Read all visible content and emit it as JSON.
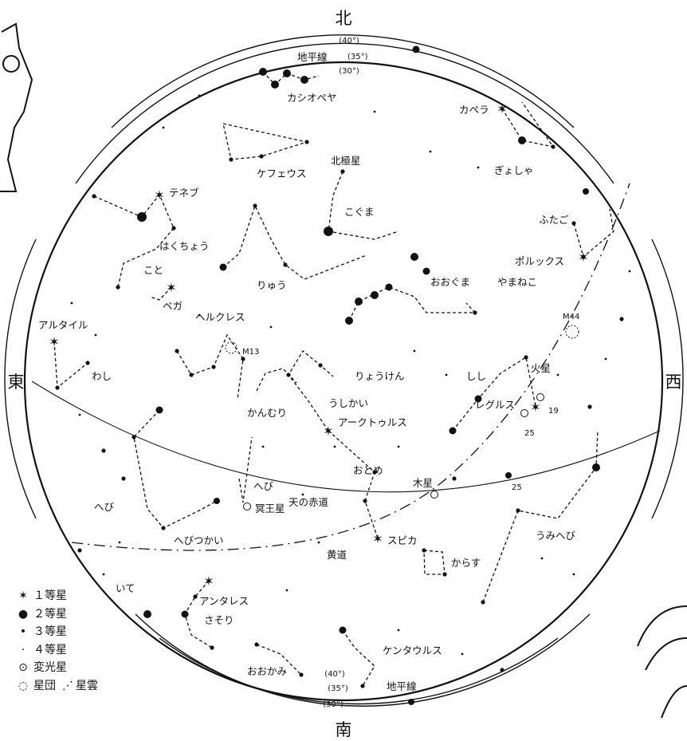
{
  "directions": {
    "north": "北",
    "south": "南",
    "east": "東",
    "west": "西"
  },
  "horizon": {
    "label": "地平線",
    "lat_labels": [
      "(40°)",
      "(35°)",
      "(30°)"
    ]
  },
  "lines": {
    "equator": "天の赤道",
    "ecliptic": "黄道"
  },
  "constellations": {
    "cassiopeia": "カシオペヤ",
    "cepheus": "ケフェウス",
    "ursa_minor": "こぐま",
    "draco": "りゅう",
    "cygnus": "はくちょう",
    "lyra": "こと",
    "hercules": "ヘルクレス",
    "aquila": "わし",
    "corona_borealis": "かんむり",
    "bootes": "うしかい",
    "canes_venatici": "りょうけん",
    "ursa_major": "おおぐま",
    "lynx": "やまねこ",
    "gemini": "ふたご",
    "auriga": "ぎょしゃ",
    "leo": "しし",
    "virgo": "おとめ",
    "hydra": "うみへび",
    "corvus": "からす",
    "serpens_caput": "へび",
    "serpens_cauda": "へび",
    "ophiuchus": "へびつかい",
    "sagittarius": "いて",
    "scorpius": "さそり",
    "lupus": "おおかみ",
    "centaurus": "ケンタウルス"
  },
  "stars": {
    "polaris": "北極星",
    "capella": "カペラ",
    "deneb": "テネブ",
    "vega": "ベガ",
    "altair": "アルタイル",
    "pollux": "ポルックス",
    "regulus": "レグルス",
    "arcturus": "アークトゥルス",
    "spica": "スピカ",
    "antares": "アンタレス"
  },
  "objects": {
    "m13": "M13",
    "m44": "M44",
    "mars": "火星",
    "jupiter": "木星",
    "pluto": "冥王星"
  },
  "numbers": {
    "n19": "19",
    "n25a": "25",
    "n25b": "25"
  },
  "legend": [
    {
      "icon": "first-magnitude-star-icon",
      "label": "１等星"
    },
    {
      "icon": "second-magnitude-star-icon",
      "label": "２等星"
    },
    {
      "icon": "third-magnitude-star-icon",
      "label": "３等星"
    },
    {
      "icon": "fourth-magnitude-star-icon",
      "label": "４等星"
    },
    {
      "icon": "variable-star-icon",
      "label": "変光星"
    },
    {
      "icon": "star-cluster-icon",
      "label": "星団"
    },
    {
      "icon": "nebula-icon",
      "label": "星雲"
    }
  ]
}
